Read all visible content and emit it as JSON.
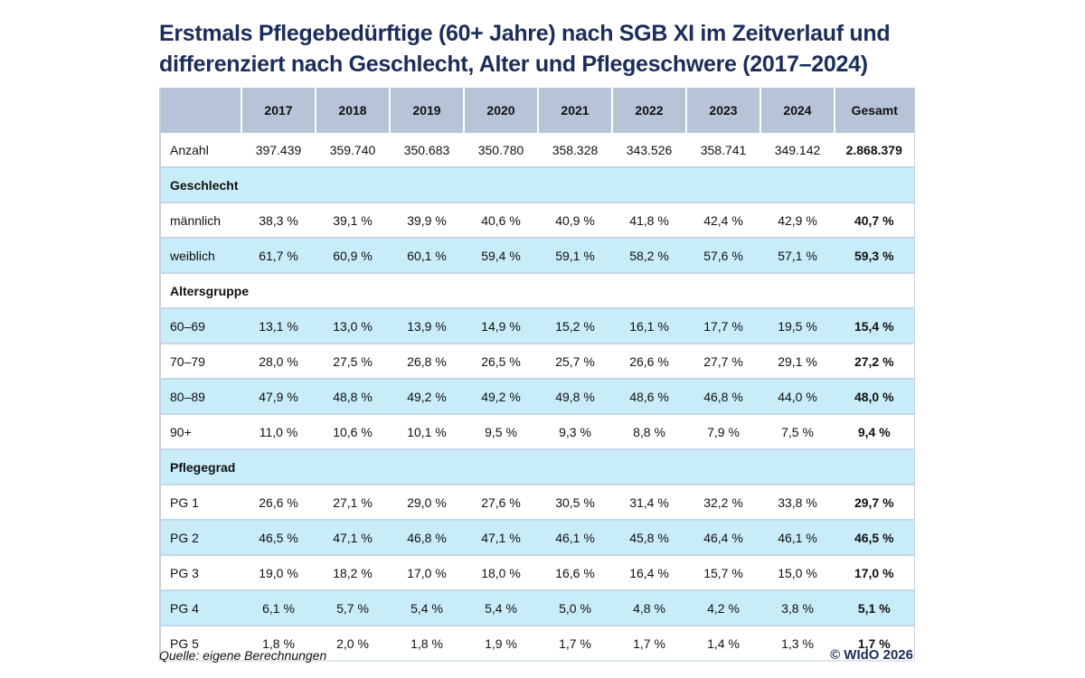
{
  "title_line1": "Erstmals Pflegebedürftige (60+ Jahre) nach SGB XI im Zeitverlauf und",
  "title_line2": "differenziert nach Geschlecht, Alter und Pflegeschwere (2017–2024)",
  "columns": [
    "",
    "2017",
    "2018",
    "2019",
    "2020",
    "2021",
    "2022",
    "2023",
    "2024",
    "Gesamt"
  ],
  "rows": [
    {
      "type": "data",
      "style": "white",
      "label": "Anzahl",
      "values": [
        "397.439",
        "359.740",
        "350.683",
        "350.780",
        "358.328",
        "343.526",
        "358.741",
        "349.142"
      ],
      "total": "2.868.379"
    },
    {
      "type": "section",
      "style": "blue",
      "label": "Geschlecht"
    },
    {
      "type": "data",
      "style": "white",
      "label": "männlich",
      "values": [
        "38,3 %",
        "39,1 %",
        "39,9 %",
        "40,6 %",
        "40,9 %",
        "41,8 %",
        "42,4 %",
        "42,9 %"
      ],
      "total": "40,7 %"
    },
    {
      "type": "data",
      "style": "blue",
      "label": "weiblich",
      "values": [
        "61,7 %",
        "60,9 %",
        "60,1 %",
        "59,4 %",
        "59,1 %",
        "58,2 %",
        "57,6 %",
        "57,1 %"
      ],
      "total": "59,3 %"
    },
    {
      "type": "section",
      "style": "white",
      "label": "Altersgruppe"
    },
    {
      "type": "data",
      "style": "blue",
      "label": "60–69",
      "values": [
        "13,1 %",
        "13,0 %",
        "13,9 %",
        "14,9 %",
        "15,2 %",
        "16,1 %",
        "17,7 %",
        "19,5 %"
      ],
      "total": "15,4 %"
    },
    {
      "type": "data",
      "style": "white",
      "label": "70–79",
      "values": [
        "28,0 %",
        "27,5 %",
        "26,8 %",
        "26,5 %",
        "25,7 %",
        "26,6 %",
        "27,7 %",
        "29,1 %"
      ],
      "total": "27,2 %"
    },
    {
      "type": "data",
      "style": "blue",
      "label": "80–89",
      "values": [
        "47,9 %",
        "48,8 %",
        "49,2 %",
        "49,2 %",
        "49,8 %",
        "48,6 %",
        "46,8 %",
        "44,0 %"
      ],
      "total": "48,0 %"
    },
    {
      "type": "data",
      "style": "white",
      "label": "90+",
      "values": [
        "11,0 %",
        "10,6 %",
        "10,1 %",
        "9,5 %",
        "9,3 %",
        "8,8 %",
        "7,9 %",
        "7,5 %"
      ],
      "total": "9,4 %"
    },
    {
      "type": "section",
      "style": "blue",
      "label": "Pflegegrad"
    },
    {
      "type": "data",
      "style": "white",
      "label": "PG 1",
      "values": [
        "26,6 %",
        "27,1 %",
        "29,0 %",
        "27,6 %",
        "30,5 %",
        "31,4 %",
        "32,2 %",
        "33,8 %"
      ],
      "total": "29,7 %"
    },
    {
      "type": "data",
      "style": "blue",
      "label": "PG 2",
      "values": [
        "46,5 %",
        "47,1 %",
        "46,8 %",
        "47,1 %",
        "46,1 %",
        "45,8 %",
        "46,4 %",
        "46,1 %"
      ],
      "total": "46,5 %"
    },
    {
      "type": "data",
      "style": "white",
      "label": "PG 3",
      "values": [
        "19,0 %",
        "18,2 %",
        "17,0 %",
        "18,0 %",
        "16,6 %",
        "16,4 %",
        "15,7 %",
        "15,0 %"
      ],
      "total": "17,0 %"
    },
    {
      "type": "data",
      "style": "blue",
      "label": "PG 4",
      "values": [
        "6,1 %",
        "5,7 %",
        "5,4 %",
        "5,4 %",
        "5,0 %",
        "4,8 %",
        "4,2 %",
        "3,8 %"
      ],
      "total": "5,1 %"
    },
    {
      "type": "data",
      "style": "white",
      "label": "PG 5",
      "values": [
        "1,8 %",
        "2,0 %",
        "1,8 %",
        "1,9 %",
        "1,7 %",
        "1,7 %",
        "1,4 %",
        "1,3 %"
      ],
      "total": "1,7 %"
    }
  ],
  "source": "Quelle: eigene Berechnungen",
  "copyright": "© WIdO 2026",
  "colors": {
    "title": "#1b2d5a",
    "header_bg": "#b7c4d7",
    "row_blue": "#c8ecf8",
    "row_white": "#ffffff"
  }
}
